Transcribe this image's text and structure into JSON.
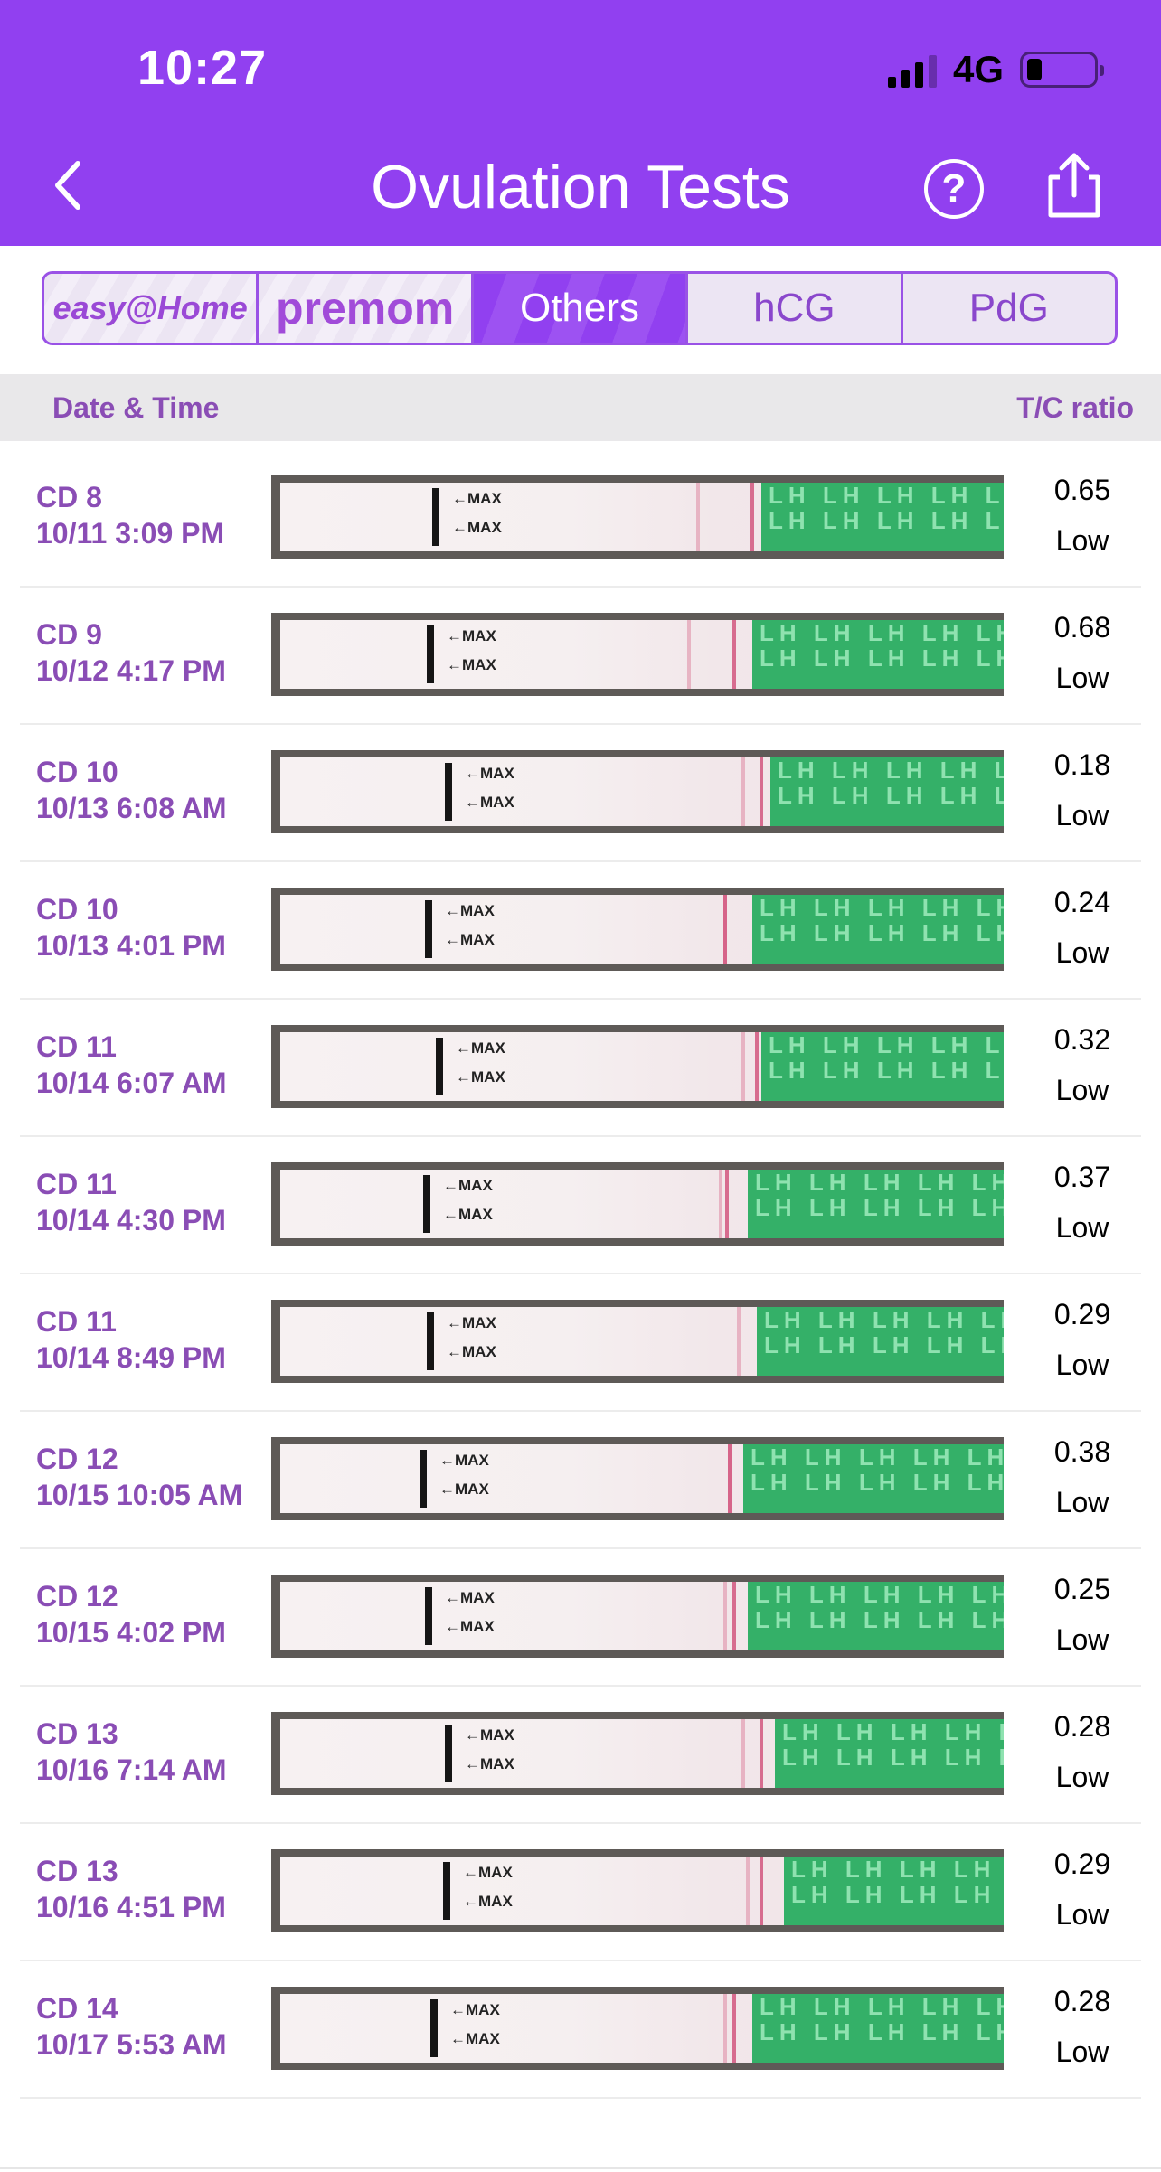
{
  "status_bar": {
    "time": "10:27",
    "network": "4G"
  },
  "nav": {
    "title": "Ovulation Tests"
  },
  "segments": [
    {
      "label": "easy@Home",
      "active": false
    },
    {
      "label": "premom",
      "active": false
    },
    {
      "label": "Others",
      "active": true
    },
    {
      "label": "hCG",
      "active": false
    },
    {
      "label": "PdG",
      "active": false
    }
  ],
  "table": {
    "col_date": "Date & Time",
    "col_ratio": "T/C ratio",
    "strip_text": "←MAX",
    "strip_brand": "LH",
    "rows": [
      {
        "cd": "CD 8",
        "datetime": "10/11 3:09 PM",
        "ratio": "0.65",
        "level": "Low"
      },
      {
        "cd": "CD 9",
        "datetime": "10/12 4:17 PM",
        "ratio": "0.68",
        "level": "Low"
      },
      {
        "cd": "CD 10",
        "datetime": "10/13 6:08 AM",
        "ratio": "0.18",
        "level": "Low"
      },
      {
        "cd": "CD 10",
        "datetime": "10/13 4:01 PM",
        "ratio": "0.24",
        "level": "Low"
      },
      {
        "cd": "CD 11",
        "datetime": "10/14 6:07 AM",
        "ratio": "0.32",
        "level": "Low"
      },
      {
        "cd": "CD 11",
        "datetime": "10/14 4:30 PM",
        "ratio": "0.37",
        "level": "Low"
      },
      {
        "cd": "CD 11",
        "datetime": "10/14 8:49 PM",
        "ratio": "0.29",
        "level": "Low"
      },
      {
        "cd": "CD 12",
        "datetime": "10/15 10:05 AM",
        "ratio": "0.38",
        "level": "Low"
      },
      {
        "cd": "CD 12",
        "datetime": "10/15 4:02 PM",
        "ratio": "0.25",
        "level": "Low"
      },
      {
        "cd": "CD 13",
        "datetime": "10/16 7:14 AM",
        "ratio": "0.28",
        "level": "Low"
      },
      {
        "cd": "CD 13",
        "datetime": "10/16 4:51 PM",
        "ratio": "0.29",
        "level": "Low"
      },
      {
        "cd": "CD 14",
        "datetime": "10/17 5:53 AM",
        "ratio": "0.28",
        "level": "Low"
      }
    ]
  }
}
